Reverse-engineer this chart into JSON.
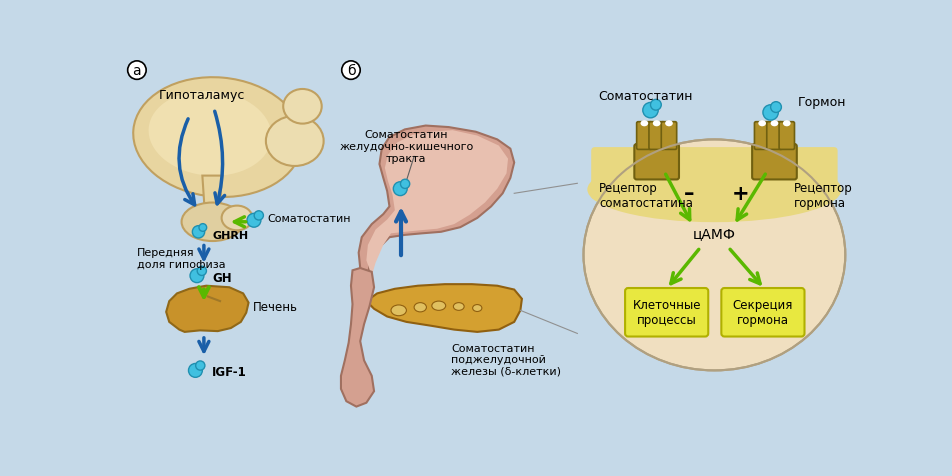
{
  "bg_color": "#c5d9e8",
  "panel_a_label": "а",
  "panel_b_label": "б",
  "hypothalamus_label": "Гипоталамус",
  "somatostatin_label_a": "Соматостатин",
  "ghrh_label": "GHRH",
  "anterior_pituitary_label": "Передняя\nдоля гипофиза",
  "gh_label": "GH",
  "liver_label": "Печень",
  "igf1_label": "IGF-1",
  "somatostatin_gi_label": "Соматостатин\nжелудочно-кишечного\nтракта",
  "somatostatin_pancreas_label": "Соматостатин\nподжелудочной\nжелезы (δ-клетки)",
  "somatostatin_circle_label": "Соматостатин",
  "hormone_label": "Гормон",
  "receptor_somatostatin_label": "Рецептор\nсоматостатина",
  "receptor_hormone_label": "Рецептор\nгормона",
  "camp_label": "цАМФ",
  "minus_label": "–",
  "plus_label": "+",
  "cell_processes_label": "Клеточные\nпроцессы",
  "hormone_secretion_label": "Секреция\nгормона",
  "blue_color": "#1a5fa8",
  "green_color": "#5ab800",
  "hypothalamus_fill": "#e8d5a0",
  "hypo_inner": "#f0e0b0",
  "liver_fill": "#c8922a",
  "receptor_fill": "#b09028",
  "box_fill": "#e8e840",
  "box_edge": "#b0b000",
  "circle_bg": "#f0dfc0",
  "membrane_fill": "#e8d880",
  "stomach_outer": "#d4a090",
  "stomach_inner": "#e8c0b0",
  "pancreas_fill": "#d4a030",
  "cyan_mol": "#40c0e0",
  "cyan_mol_dark": "#2090b0"
}
